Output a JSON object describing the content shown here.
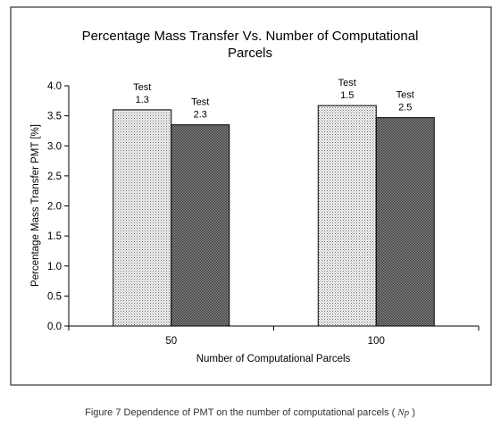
{
  "chart_data": {
    "type": "bar",
    "title": "Percentage Mass Transfer Vs. Number of Computational Parcels",
    "title_lines": [
      "Percentage Mass Transfer Vs. Number of Computational",
      "Parcels"
    ],
    "xlabel": "Number of Computational Parcels",
    "ylabel": "Percentage Mass Transfer PMT [%]",
    "categories": [
      "50",
      "100"
    ],
    "ylim": [
      0,
      4.0
    ],
    "yticks": [
      "0.0",
      "0.5",
      "1.0",
      "1.5",
      "2.0",
      "2.5",
      "3.0",
      "3.5",
      "4.0"
    ],
    "grid": false,
    "legend": "none",
    "series": [
      {
        "values": [
          3.6,
          3.67
        ],
        "labels": [
          [
            "Test",
            "1.3"
          ],
          [
            "Test",
            "1.5"
          ]
        ],
        "fill": "#d6d6d6"
      },
      {
        "values": [
          3.35,
          3.47
        ],
        "labels": [
          [
            "Test",
            "2.3"
          ],
          [
            "Test",
            "2.5"
          ]
        ],
        "fill": "#8a8a8a"
      }
    ]
  },
  "caption": {
    "prefix": "Figure 7 Dependence of PMT on the number of computational parcels ( ",
    "symbol": "Np",
    "suffix": " )"
  },
  "colors": {
    "border": "#333333",
    "axis": "#000000",
    "caption": "#333333"
  }
}
